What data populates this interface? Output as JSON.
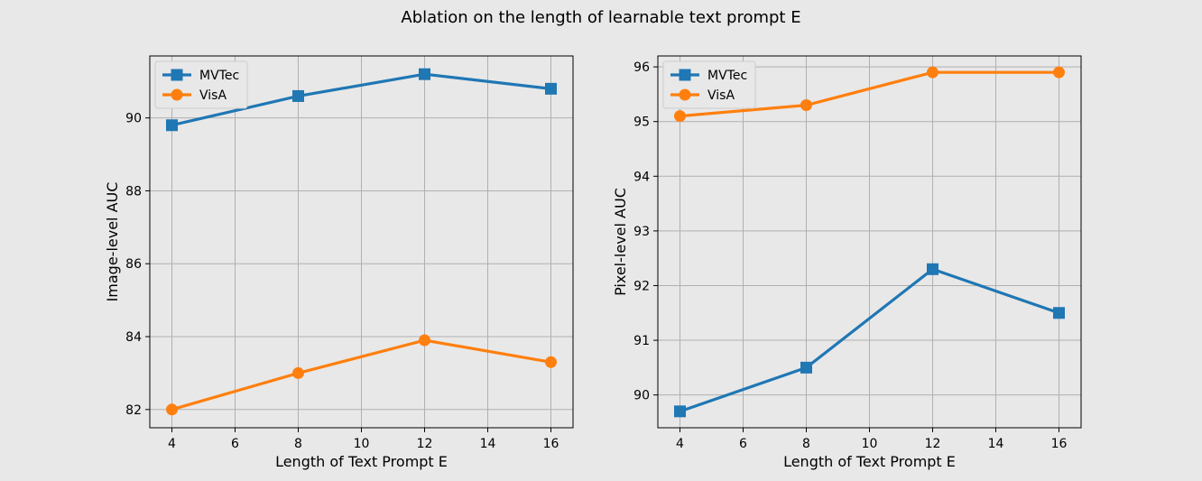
{
  "figure_title": "Ablation on the length of learnable text prompt E",
  "chart_data": [
    {
      "type": "line",
      "title": "",
      "xlabel": "Length of Text Prompt E",
      "ylabel": "Image-level AUC",
      "x": [
        4,
        8,
        12,
        16
      ],
      "xlim": [
        3.3,
        16.7
      ],
      "ylim": [
        81.5,
        91.7
      ],
      "xticks": [
        4,
        6,
        8,
        10,
        12,
        14,
        16
      ],
      "yticks": [
        82,
        84,
        86,
        88,
        90
      ],
      "grid": true,
      "legend": "top-left",
      "series": [
        {
          "name": "MVTec",
          "values": [
            89.8,
            90.6,
            91.2,
            90.8
          ],
          "color": "#1f77b4",
          "marker": "square"
        },
        {
          "name": "VisA",
          "values": [
            82.0,
            83.0,
            83.9,
            83.3
          ],
          "color": "#ff7f0e",
          "marker": "circle"
        }
      ]
    },
    {
      "type": "line",
      "title": "",
      "xlabel": "Length of Text Prompt E",
      "ylabel": "Pixel-level AUC",
      "x": [
        4,
        8,
        12,
        16
      ],
      "xlim": [
        3.3,
        16.7
      ],
      "ylim": [
        89.4,
        96.2
      ],
      "xticks": [
        4,
        6,
        8,
        10,
        12,
        14,
        16
      ],
      "yticks": [
        90,
        91,
        92,
        93,
        94,
        95,
        96
      ],
      "grid": true,
      "legend": "top-left",
      "series": [
        {
          "name": "MVTec",
          "values": [
            89.7,
            90.5,
            92.3,
            91.5
          ],
          "color": "#1f77b4",
          "marker": "square"
        },
        {
          "name": "VisA",
          "values": [
            95.1,
            95.3,
            95.9,
            95.9
          ],
          "color": "#ff7f0e",
          "marker": "circle"
        }
      ]
    }
  ]
}
